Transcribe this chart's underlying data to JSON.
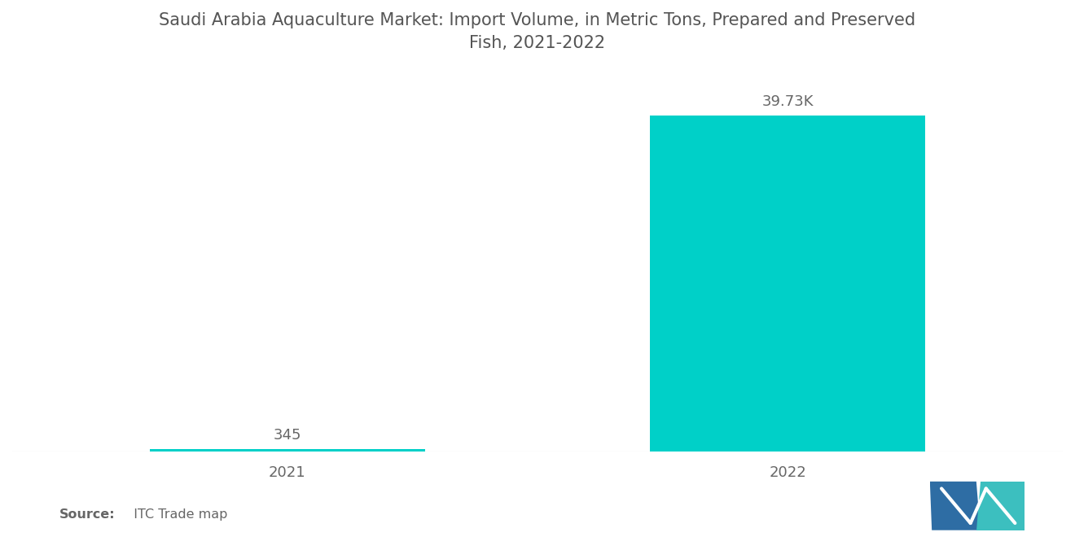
{
  "title": "Saudi Arabia Aquaculture Market: Import Volume, in Metric Tons, Prepared and Preserved\nFish, 2021-2022",
  "categories": [
    "2021",
    "2022"
  ],
  "values": [
    345,
    39730
  ],
  "bar_color": "#00D0C8",
  "value_labels": [
    "345",
    "39.73K"
  ],
  "source_bold": "Source:",
  "source_normal": "  ITC Trade map",
  "background_color": "#ffffff",
  "title_color": "#555555",
  "label_color": "#666666",
  "ylim": [
    0,
    44000
  ],
  "bar_width": 0.55,
  "title_fontsize": 15,
  "tick_fontsize": 13,
  "value_fontsize": 13
}
